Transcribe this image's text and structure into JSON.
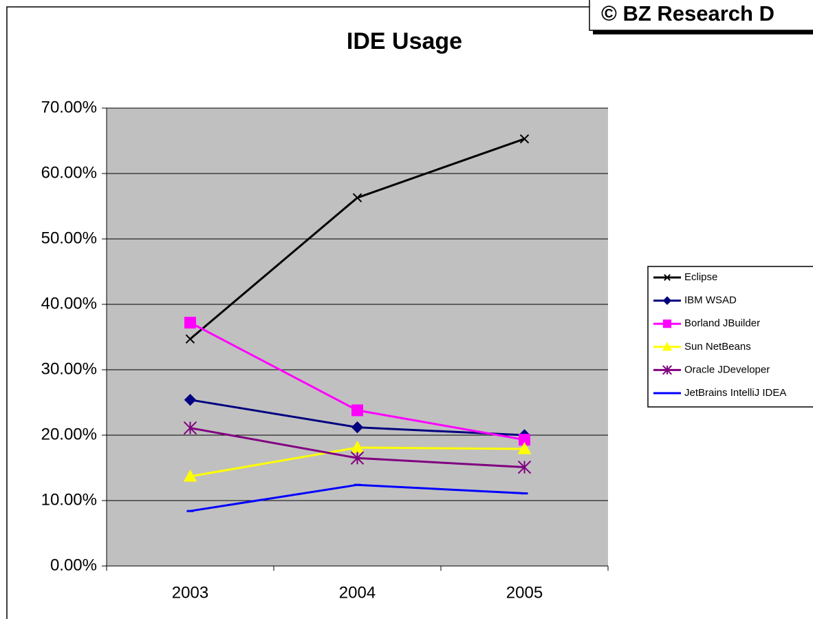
{
  "chart_data": {
    "type": "line",
    "title": "IDE Usage",
    "annotation": "© BZ Research D",
    "categories": [
      "2003",
      "2004",
      "2005"
    ],
    "ylim": [
      0,
      70
    ],
    "yticks": [
      {
        "value": 0,
        "label": "0.00%"
      },
      {
        "value": 10,
        "label": "10.00%"
      },
      {
        "value": 20,
        "label": "20.00%"
      },
      {
        "value": 30,
        "label": "30.00%"
      },
      {
        "value": 40,
        "label": "40.00%"
      },
      {
        "value": 50,
        "label": "50.00%"
      },
      {
        "value": 60,
        "label": "60.00%"
      },
      {
        "value": 70,
        "label": "70.00%"
      }
    ],
    "grid": true,
    "legend": "right",
    "series": [
      {
        "name": "Eclipse",
        "color": "#000000",
        "marker": "x",
        "values": [
          34.7,
          56.3,
          65.3
        ]
      },
      {
        "name": "IBM WSAD",
        "color": "#000080",
        "marker": "diamond",
        "values": [
          25.4,
          21.2,
          20.0
        ]
      },
      {
        "name": "Borland JBuilder",
        "color": "#ff00ff",
        "marker": "square",
        "values": [
          37.2,
          23.8,
          19.3
        ]
      },
      {
        "name": "Sun NetBeans",
        "color": "#ffff00",
        "marker": "triangle",
        "values": [
          13.7,
          18.1,
          17.9
        ]
      },
      {
        "name": "Oracle JDeveloper",
        "color": "#800080",
        "marker": "asterisk",
        "values": [
          21.1,
          16.5,
          15.1
        ]
      },
      {
        "name": "JetBrains IntelliJ IDEA",
        "color": "#0000ff",
        "marker": "dash",
        "values": [
          8.4,
          12.4,
          11.1
        ]
      }
    ]
  }
}
